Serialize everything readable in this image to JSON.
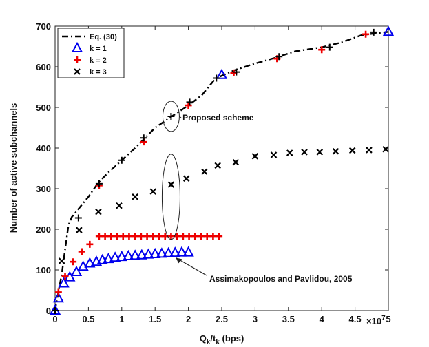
{
  "chart_data": {
    "type": "line",
    "xlabel": "Q_k/t_k (bps)",
    "ylabel": "Number of active subchannels",
    "x_exponent": "×10",
    "x_exponent_power": "7",
    "xlim": [
      0,
      5
    ],
    "ylim": [
      0,
      700
    ],
    "xticks": [
      "0",
      "0.5",
      "1",
      "1.5",
      "2",
      "2.5",
      "3",
      "3.5",
      "4",
      "4.5",
      "5"
    ],
    "yticks": [
      "0",
      "100",
      "200",
      "300",
      "400",
      "500",
      "600",
      "700"
    ],
    "series": [
      {
        "name": "Eq. (30)",
        "marker": "dashdot-line",
        "color": "#000000",
        "x": [
          0,
          0.02,
          0.05,
          0.1,
          0.15,
          0.2,
          0.25,
          0.35,
          0.5,
          0.65,
          0.8,
          1.0,
          1.2,
          1.35,
          1.5,
          1.75,
          2.0,
          2.2,
          2.4,
          2.5,
          2.7,
          3.0,
          3.3,
          3.6,
          4.0,
          4.3,
          4.6,
          5.0
        ],
        "values": [
          0,
          20,
          45,
          90,
          150,
          210,
          230,
          250,
          280,
          315,
          340,
          370,
          400,
          425,
          450,
          478,
          505,
          530,
          570,
          578,
          592,
          608,
          622,
          638,
          648,
          660,
          678,
          686
        ]
      },
      {
        "name": "k = 1",
        "marker": "triangle",
        "color": "#0000ee",
        "x": [
          0.0,
          0.05,
          0.13,
          0.22,
          0.32,
          0.42,
          0.52,
          0.62,
          0.71,
          0.8,
          0.9,
          1.0,
          1.1,
          1.2,
          1.3,
          1.4,
          1.5,
          1.6,
          1.7,
          1.8,
          1.9,
          2.0,
          2.5,
          5.0
        ],
        "values": [
          0,
          30,
          67,
          82,
          95,
          108,
          116,
          120,
          124,
          127,
          130,
          132,
          134,
          135,
          136,
          138,
          139,
          140,
          141,
          142,
          143,
          143,
          580,
          686
        ]
      },
      {
        "name": "k = 2",
        "marker": "plus",
        "color": "#ee0000",
        "x": [
          0.05,
          0.15,
          0.27,
          0.4,
          0.52,
          0.66,
          0.75,
          0.84,
          0.93,
          1.02,
          1.11,
          1.2,
          1.29,
          1.38,
          1.47,
          1.56,
          1.65,
          1.74,
          1.83,
          1.92,
          2.01,
          2.1,
          2.19,
          2.28,
          2.37,
          2.46,
          1.33,
          2.0,
          2.68,
          3.33,
          4.0,
          4.66,
          0.66
        ],
        "values": [
          45,
          84,
          120,
          145,
          163,
          183,
          183,
          183,
          183,
          183,
          183,
          183,
          183,
          183,
          183,
          183,
          183,
          183,
          183,
          183,
          183,
          183,
          183,
          183,
          183,
          183,
          415,
          505,
          585,
          620,
          642,
          680,
          308
        ]
      },
      {
        "name": "k = 3",
        "marker": "x",
        "color": "#000000",
        "x": [
          0.1,
          0.36,
          0.65,
          0.96,
          1.2,
          1.47,
          1.74,
          1.97,
          2.24,
          2.44,
          2.71,
          3.0,
          3.28,
          3.52,
          3.74,
          3.97,
          4.21,
          4.46,
          4.71,
          4.96
        ],
        "values": [
          122,
          198,
          243,
          258,
          280,
          293,
          310,
          325,
          342,
          357,
          365,
          380,
          383,
          388,
          390,
          390,
          392,
          394,
          395,
          397
        ]
      },
      {
        "name": "Eq. (30) markers",
        "marker": "plus-black",
        "color": "#000000",
        "x": [
          0.0,
          0.35,
          0.66,
          1.0,
          1.33,
          1.74,
          2.02,
          2.42,
          2.72,
          3.36,
          4.12,
          4.78
        ],
        "values": [
          0,
          228,
          312,
          370,
          425,
          478,
          513,
          572,
          587,
          625,
          648,
          685
        ]
      }
    ],
    "legend": {
      "position": "top-left",
      "entries": [
        "Eq. (30)",
        "k = 1",
        "k = 2",
        "k = 3"
      ]
    },
    "annotations": [
      {
        "text": "Proposed scheme",
        "x": 1.85,
        "y": 478
      },
      {
        "text": "Assimakopoulos and Pavlidou, 2005",
        "x": 1.78,
        "y": 140
      }
    ]
  }
}
